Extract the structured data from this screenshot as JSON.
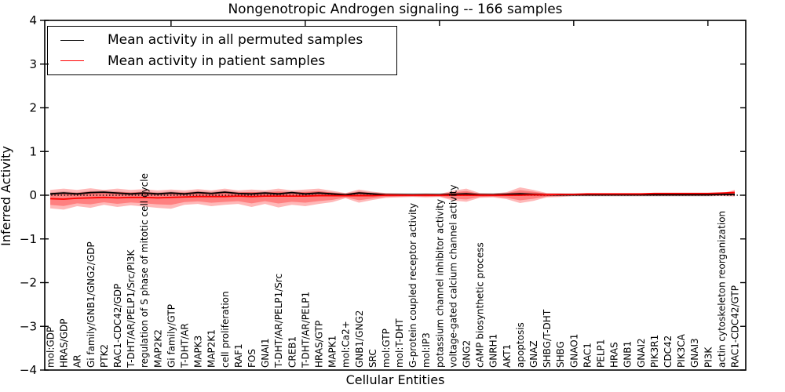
{
  "title": "Nongenotropic Androgen signaling -- 166 samples",
  "legend": {
    "permuted_label": "Mean activity in all permuted samples",
    "patient_label": "Mean activity in patient samples"
  },
  "axes": {
    "y_label": "Inferred Activity",
    "x_label": "Cellular Entities",
    "y_ticks": [
      "4",
      "3",
      "2",
      "1",
      "0",
      "−1",
      "−2",
      "−3",
      "−4"
    ],
    "y_tick_values": [
      4,
      3,
      2,
      1,
      0,
      -1,
      -2,
      -3,
      -4
    ]
  },
  "colors": {
    "permuted_line": "#000000",
    "patient_line": "#ff0000",
    "patient_band": "rgba(255,0,0,0.28)",
    "patient_band_inner": "rgba(255,0,0,0.30)",
    "permuted_band": "rgba(130,130,130,0.40)",
    "zero_line": "#000000",
    "frame": "#000000"
  },
  "chart_data": {
    "type": "line",
    "title": "Nongenotropic Androgen signaling -- 166 samples",
    "xlabel": "Cellular Entities",
    "ylabel": "Inferred Activity",
    "ylim": [
      -4,
      4
    ],
    "grid": false,
    "legend_position": "upper left",
    "zero_reference_line": "dotted",
    "categories": [
      "mol:GDP",
      "HRAS/GDP",
      "AR",
      "Gi family/GNB1/GNG2/GDP",
      "PTK2",
      "RAC1-CDC42/GDP",
      "T-DHT/AR/PELP1/Src/PI3K",
      "regulation of S phase of mitotic cell cycle",
      "MAP2K2",
      "Gi family/GTP",
      "T-DHT/AR",
      "MAPK3",
      "MAP2K1",
      "cell proliferation",
      "RAF1",
      "FOS",
      "GNAI1",
      "T-DHT/AR/PELP1/Src",
      "CREB1",
      "T-DHT/AR/PELP1",
      "HRAS/GTP",
      "MAPK1",
      "mol:Ca2+",
      "GNB1/GNG2",
      "SRC",
      "mol:GTP",
      "mol:T-DHT",
      "G-protein coupled receptor activity",
      "mol:IP3",
      "potassium channel inhibitor activity",
      "voltage-gated calcium channel activity",
      "GNG2",
      "cAMP biosynthetic process",
      "GNRH1",
      "AKT1",
      "apoptosis",
      "GNAZ",
      "SHBG/T-DHT",
      "SHBG",
      "GNAO1",
      "RAC1",
      "PELP1",
      "HRAS",
      "GNB1",
      "GNAI2",
      "PIK3R1",
      "CDC42",
      "PIK3CA",
      "GNAI3",
      "PI3K",
      "actin cytoskeleton reorganization",
      "RAC1-CDC42/GTP"
    ],
    "series": [
      {
        "name": "Mean activity in all permuted samples",
        "color": "#000000",
        "values": [
          0.03,
          0.05,
          0.03,
          0.06,
          0.07,
          0.05,
          0.03,
          0.05,
          0.03,
          0.05,
          0.03,
          0.06,
          0.04,
          0.07,
          0.04,
          0.03,
          0.05,
          0.03,
          0.06,
          0.03,
          0.05,
          0.03,
          0.01,
          0.05,
          0.03,
          0.01,
          0.01,
          0.01,
          0.01,
          0.01,
          0.02,
          0.03,
          0.01,
          0.01,
          0.02,
          0.03,
          0.02,
          0.01,
          0.01,
          0.01,
          0.01,
          0.01,
          0.01,
          0.01,
          0.01,
          0.01,
          0.01,
          0.01,
          0.01,
          0.01,
          0.02,
          0.02
        ]
      },
      {
        "name": "Mean activity in patient samples",
        "color": "#ff0000",
        "values": [
          -0.08,
          -0.09,
          -0.07,
          -0.06,
          -0.05,
          -0.06,
          -0.05,
          -0.05,
          -0.06,
          -0.05,
          -0.04,
          -0.03,
          -0.03,
          -0.03,
          -0.02,
          -0.03,
          -0.02,
          -0.02,
          -0.02,
          -0.02,
          -0.01,
          -0.01,
          -0.01,
          -0.01,
          -0.01,
          0.0,
          0.0,
          0.0,
          0.0,
          0.0,
          0.0,
          0.0,
          0.0,
          0.0,
          0.0,
          0.0,
          0.01,
          0.01,
          0.02,
          0.02,
          0.03,
          0.03,
          0.03,
          0.03,
          0.03,
          0.04,
          0.04,
          0.04,
          0.04,
          0.04,
          0.05,
          0.06
        ]
      }
    ],
    "bands": [
      {
        "name": "patient-sample-activity-range",
        "upper": [
          0.12,
          0.15,
          0.12,
          0.16,
          0.12,
          0.15,
          0.12,
          0.14,
          0.11,
          0.13,
          0.11,
          0.14,
          0.11,
          0.15,
          0.11,
          0.13,
          0.11,
          0.15,
          0.11,
          0.13,
          0.15,
          0.1,
          0.05,
          0.13,
          0.08,
          0.05,
          0.04,
          0.03,
          0.04,
          0.03,
          0.1,
          0.15,
          0.05,
          0.04,
          0.07,
          0.18,
          0.12,
          0.05,
          0.04,
          0.03,
          0.03,
          0.03,
          0.03,
          0.03,
          0.03,
          0.03,
          0.03,
          0.03,
          0.03,
          0.03,
          0.04,
          0.12
        ],
        "lower": [
          -0.3,
          -0.33,
          -0.25,
          -0.29,
          -0.22,
          -0.27,
          -0.23,
          -0.26,
          -0.29,
          -0.31,
          -0.22,
          -0.2,
          -0.25,
          -0.22,
          -0.2,
          -0.27,
          -0.2,
          -0.28,
          -0.22,
          -0.25,
          -0.2,
          -0.16,
          -0.07,
          -0.17,
          -0.11,
          -0.06,
          -0.05,
          -0.04,
          -0.05,
          -0.04,
          -0.12,
          -0.15,
          -0.06,
          -0.05,
          -0.09,
          -0.18,
          -0.13,
          -0.05,
          -0.04,
          -0.02,
          -0.02,
          -0.02,
          -0.02,
          -0.02,
          -0.02,
          -0.02,
          -0.02,
          -0.02,
          -0.02,
          -0.02,
          -0.02,
          -0.03
        ]
      },
      {
        "name": "permuted-sample-activity-range",
        "half_width": 0.035
      }
    ]
  }
}
